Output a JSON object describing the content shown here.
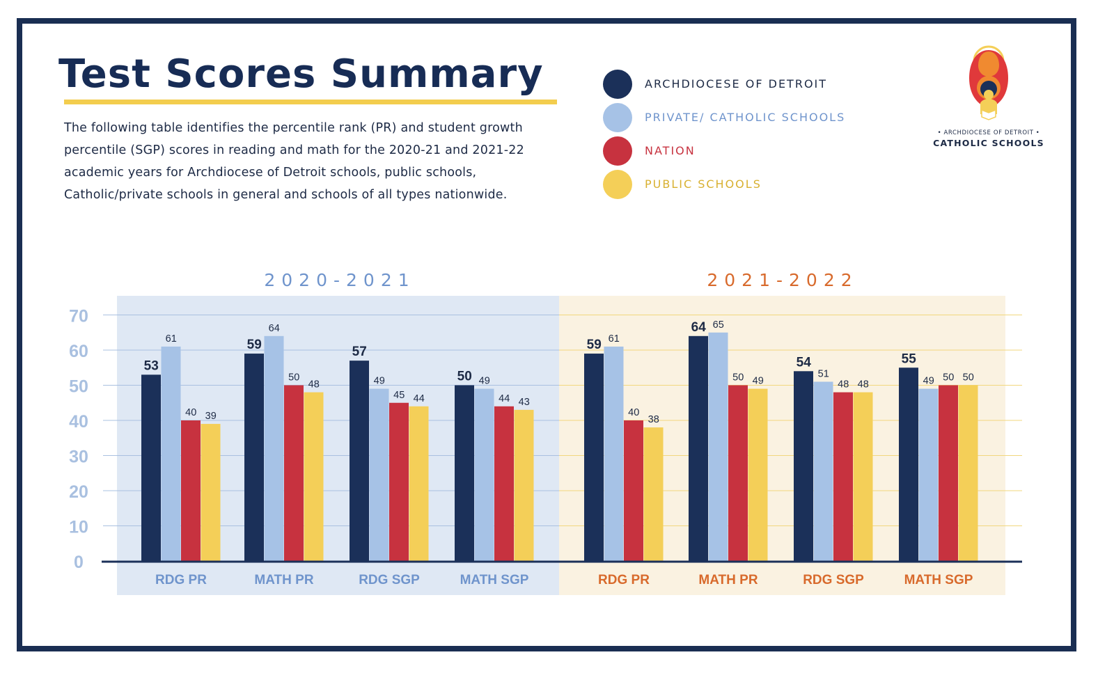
{
  "header": {
    "title": "Test Scores Summary",
    "description": "The following table identifies the percentile rank (PR) and student growth percentile (SGP) scores in reading and math for the 2020-21 and 2021-22 academic years for Archdiocese of Detroit schools, public schools, Catholic/private schools in general and schools of all types nationwide."
  },
  "logo": {
    "line1": "• ARCHDIOCESE OF DETROIT •",
    "line2": "CATHOLIC SCHOOLS"
  },
  "legend": [
    {
      "label": "ARCHDIOCESE OF DETROIT",
      "color": "#1b3059",
      "text_color": "#1d2a45"
    },
    {
      "label": "PRIVATE/ CATHOLIC SCHOOLS",
      "color": "#a6c2e6",
      "text_color": "#6f94cc"
    },
    {
      "label": "NATION",
      "color": "#c7323f",
      "text_color": "#c7323f"
    },
    {
      "label": "PUBLIC SCHOOLS",
      "color": "#f4cf58",
      "text_color": "#d8b030"
    }
  ],
  "chart_data": {
    "type": "bar",
    "ylim": [
      0,
      70
    ],
    "yticks": [
      "0",
      "10",
      "20",
      "30",
      "40",
      "50",
      "60",
      "70"
    ],
    "series_names": [
      "ARCHDIOCESE OF DETROIT",
      "PRIVATE/ CATHOLIC SCHOOLS",
      "NATION",
      "PUBLIC SCHOOLS"
    ],
    "series_colors": [
      "#1b3059",
      "#a6c2e6",
      "#c7323f",
      "#f4cf58"
    ],
    "panels": [
      {
        "title": "2020-2021",
        "title_color": "#6f94cc",
        "background": "#dfe8f4",
        "grid_color": "#a9c0e0",
        "label_color": "#6f94cc",
        "groups": [
          {
            "category": "RDG PR",
            "values": [
              53,
              61,
              40,
              39
            ]
          },
          {
            "category": "MATH PR",
            "values": [
              59,
              64,
              50,
              48
            ]
          },
          {
            "category": "RDG SGP",
            "values": [
              57,
              49,
              45,
              44
            ]
          },
          {
            "category": "MATH SGP",
            "values": [
              50,
              49,
              44,
              43
            ]
          }
        ]
      },
      {
        "title": "2021-2022",
        "title_color": "#d86a2c",
        "background": "#faf2e1",
        "grid_color": "#f1d77d",
        "label_color": "#d86a2c",
        "groups": [
          {
            "category": "RDG PR",
            "values": [
              59,
              61,
              40,
              38
            ]
          },
          {
            "category": "MATH PR",
            "values": [
              64,
              65,
              50,
              49
            ]
          },
          {
            "category": "RDG SGP",
            "values": [
              54,
              51,
              48,
              48
            ]
          },
          {
            "category": "MATH SGP",
            "values": [
              55,
              49,
              50,
              50
            ]
          }
        ]
      }
    ],
    "axis_color": "#1b3059",
    "ytick_color": "#a9c0e0"
  }
}
